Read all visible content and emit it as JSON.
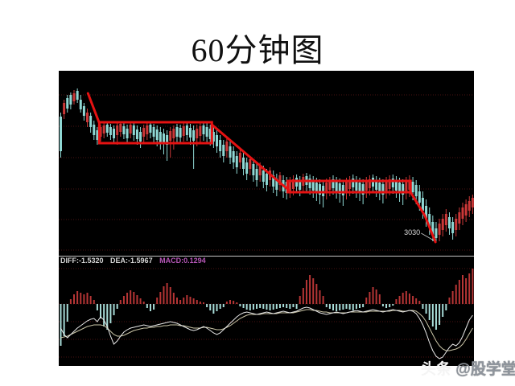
{
  "page": {
    "title": "60分钟图"
  },
  "watermark": {
    "brand": "头条",
    "handle": "@股学堂"
  },
  "chart": {
    "indicator_labels": {
      "diff": "DIFF:-1.5320",
      "dea": "DEA:-1.5967",
      "macd": "MACD:0.1294"
    },
    "colors": {
      "panel_bg": "#000000",
      "grid": "#4a1212",
      "divider": "#c4c4c4",
      "up": "#cc3838",
      "down": "#8fd8d4",
      "macd_up": "#b63535",
      "macd_down": "#a8dcd8",
      "diff_line": "#e8e8e8",
      "dea_line": "#c9c4a6",
      "annotation": "#e51212",
      "pointer": "#c8c8c8",
      "label_text": "#dddddd"
    }
  },
  "chart_data": {
    "type": "candlestick+macd",
    "title": "60分钟图",
    "legend": [
      "DIFF",
      "DEA",
      "MACD"
    ],
    "grid": true,
    "marked_low_price": 3030,
    "ylim": [
      3013,
      3243
    ],
    "candles": [
      [
        3186,
        3191,
        3135,
        3143
      ],
      [
        3189,
        3207,
        3183,
        3203
      ],
      [
        3209,
        3213,
        3191,
        3196
      ],
      [
        3213,
        3216,
        3195,
        3201
      ],
      [
        3205,
        3219,
        3201,
        3215
      ],
      [
        3218,
        3221,
        3203,
        3207
      ],
      [
        3207,
        3213,
        3191,
        3195
      ],
      [
        3199,
        3203,
        3181,
        3187
      ],
      [
        3179,
        3196,
        3173,
        3191
      ],
      [
        3187,
        3191,
        3166,
        3173
      ],
      [
        3176,
        3181,
        3157,
        3163
      ],
      [
        3169,
        3173,
        3151,
        3157
      ],
      [
        3161,
        3176,
        3155,
        3173
      ],
      [
        3165,
        3178,
        3159,
        3175
      ],
      [
        3176,
        3179,
        3161,
        3166
      ],
      [
        3173,
        3177,
        3157,
        3163
      ],
      [
        3171,
        3175,
        3153,
        3159
      ],
      [
        3163,
        3178,
        3151,
        3175
      ],
      [
        3167,
        3179,
        3161,
        3177
      ],
      [
        3174,
        3178,
        3158,
        3164
      ],
      [
        3171,
        3176,
        3153,
        3159
      ],
      [
        3165,
        3179,
        3159,
        3176
      ],
      [
        3175,
        3178,
        3156,
        3163
      ],
      [
        3170,
        3175,
        3151,
        3158
      ],
      [
        3167,
        3173,
        3147,
        3155
      ],
      [
        3161,
        3176,
        3154,
        3172
      ],
      [
        3164,
        3178,
        3157,
        3175
      ],
      [
        3176,
        3179,
        3159,
        3166
      ],
      [
        3173,
        3177,
        3153,
        3161
      ],
      [
        3170,
        3175,
        3149,
        3157
      ],
      [
        3167,
        3173,
        3145,
        3154
      ],
      [
        3165,
        3171,
        3139,
        3153
      ],
      [
        3163,
        3169,
        3131,
        3151
      ],
      [
        3156,
        3173,
        3135,
        3168
      ],
      [
        3159,
        3175,
        3145,
        3171
      ],
      [
        3173,
        3177,
        3153,
        3161
      ],
      [
        3172,
        3176,
        3152,
        3160
      ],
      [
        3162,
        3178,
        3155,
        3174
      ],
      [
        3175,
        3179,
        3156,
        3163
      ],
      [
        3172,
        3177,
        3151,
        3160
      ],
      [
        3169,
        3175,
        3121,
        3156
      ],
      [
        3159,
        3176,
        3149,
        3171
      ],
      [
        3162,
        3178,
        3153,
        3174
      ],
      [
        3175,
        3179,
        3156,
        3164
      ],
      [
        3173,
        3178,
        3153,
        3161
      ],
      [
        3171,
        3176,
        3150,
        3158
      ],
      [
        3167,
        3173,
        3147,
        3155
      ],
      [
        3163,
        3169,
        3141,
        3149
      ],
      [
        3157,
        3163,
        3135,
        3143
      ],
      [
        3151,
        3157,
        3129,
        3137
      ],
      [
        3143,
        3159,
        3135,
        3155
      ],
      [
        3149,
        3155,
        3127,
        3135
      ],
      [
        3143,
        3149,
        3121,
        3129
      ],
      [
        3137,
        3143,
        3115,
        3123
      ],
      [
        3129,
        3145,
        3121,
        3141
      ],
      [
        3135,
        3141,
        3113,
        3121
      ],
      [
        3129,
        3135,
        3107,
        3115
      ],
      [
        3121,
        3137,
        3113,
        3133
      ],
      [
        3127,
        3133,
        3105,
        3113
      ],
      [
        3121,
        3127,
        3099,
        3107
      ],
      [
        3113,
        3129,
        3105,
        3125
      ],
      [
        3119,
        3125,
        3097,
        3105
      ],
      [
        3115,
        3121,
        3093,
        3101
      ],
      [
        3107,
        3123,
        3099,
        3119
      ],
      [
        3113,
        3119,
        3091,
        3099
      ],
      [
        3109,
        3115,
        3087,
        3095
      ],
      [
        3101,
        3117,
        3093,
        3113
      ],
      [
        3107,
        3113,
        3085,
        3093
      ],
      [
        3105,
        3111,
        3083,
        3091
      ],
      [
        3093,
        3111,
        3085,
        3106
      ],
      [
        3096,
        3113,
        3088,
        3108
      ],
      [
        3110,
        3114,
        3091,
        3099
      ],
      [
        3107,
        3112,
        3087,
        3095
      ],
      [
        3100,
        3115,
        3092,
        3111
      ],
      [
        3112,
        3116,
        3093,
        3101
      ],
      [
        3109,
        3114,
        3089,
        3097
      ],
      [
        3106,
        3112,
        3085,
        3094
      ],
      [
        3104,
        3110,
        3081,
        3091
      ],
      [
        3102,
        3108,
        3077,
        3089
      ],
      [
        3100,
        3106,
        3073,
        3087
      ],
      [
        3092,
        3109,
        3083,
        3104
      ],
      [
        3095,
        3111,
        3087,
        3106
      ],
      [
        3108,
        3113,
        3089,
        3097
      ],
      [
        3105,
        3111,
        3084,
        3093
      ],
      [
        3103,
        3109,
        3079,
        3090
      ],
      [
        3101,
        3107,
        3075,
        3088
      ],
      [
        3093,
        3110,
        3083,
        3105
      ],
      [
        3096,
        3112,
        3087,
        3107
      ],
      [
        3109,
        3114,
        3090,
        3098
      ],
      [
        3106,
        3112,
        3085,
        3094
      ],
      [
        3104,
        3110,
        3081,
        3091
      ],
      [
        3102,
        3108,
        3077,
        3089
      ],
      [
        3094,
        3111,
        3085,
        3106
      ],
      [
        3097,
        3113,
        3088,
        3108
      ],
      [
        3110,
        3114,
        3091,
        3099
      ],
      [
        3107,
        3112,
        3086,
        3095
      ],
      [
        3104,
        3110,
        3082,
        3092
      ],
      [
        3102,
        3108,
        3078,
        3089
      ],
      [
        3093,
        3111,
        3084,
        3105
      ],
      [
        3096,
        3113,
        3088,
        3108
      ],
      [
        3109,
        3114,
        3090,
        3098
      ],
      [
        3106,
        3112,
        3085,
        3094
      ],
      [
        3104,
        3110,
        3080,
        3091
      ],
      [
        3102,
        3108,
        3076,
        3089
      ],
      [
        3093,
        3111,
        3083,
        3105
      ],
      [
        3095,
        3113,
        3086,
        3107
      ],
      [
        3105,
        3111,
        3082,
        3092
      ],
      [
        3101,
        3107,
        3077,
        3087
      ],
      [
        3093,
        3101,
        3069,
        3079
      ],
      [
        3085,
        3093,
        3059,
        3069
      ],
      [
        3075,
        3083,
        3049,
        3059
      ],
      [
        3065,
        3073,
        3039,
        3049
      ],
      [
        3055,
        3063,
        3031,
        3039
      ],
      [
        3047,
        3055,
        3030,
        3035
      ],
      [
        3039,
        3059,
        3031,
        3053
      ],
      [
        3045,
        3065,
        3037,
        3059
      ],
      [
        3051,
        3071,
        3043,
        3065
      ],
      [
        3061,
        3067,
        3039,
        3047
      ],
      [
        3055,
        3061,
        3033,
        3041
      ],
      [
        3045,
        3065,
        3037,
        3059
      ],
      [
        3053,
        3073,
        3045,
        3067
      ],
      [
        3059,
        3079,
        3051,
        3073
      ],
      [
        3063,
        3083,
        3055,
        3077
      ],
      [
        3069,
        3087,
        3061,
        3081
      ],
      [
        3073,
        3089,
        3065,
        3085
      ]
    ],
    "macd": {
      "unit": "relative",
      "histogram": [
        -52,
        -40,
        -22,
        6,
        12,
        16,
        14,
        12,
        14,
        10,
        5,
        -8,
        -18,
        -28,
        -32,
        -24,
        -14,
        -6,
        5,
        10,
        14,
        17,
        15,
        11,
        7,
        3,
        -5,
        -9,
        -7,
        8,
        15,
        22,
        26,
        21,
        14,
        8,
        5,
        8,
        11,
        9,
        7,
        5,
        3,
        2,
        -4,
        -8,
        -12,
        -9,
        -6,
        -4,
        3,
        5,
        4,
        2,
        -3,
        -5,
        -7,
        -8,
        -7,
        -6,
        -5,
        -6,
        -7,
        -8,
        -7,
        -6,
        -5,
        -4,
        -5,
        -6,
        -4,
        -6,
        10,
        20,
        30,
        36,
        32,
        25,
        17,
        10,
        -4,
        -6,
        -8,
        -9,
        -8,
        -7,
        -6,
        -7,
        -8,
        -6,
        -5,
        -4,
        8,
        15,
        21,
        18,
        12,
        -3,
        -5,
        -4,
        -2,
        6,
        10,
        14,
        16,
        13,
        10,
        7,
        4,
        -6,
        -12,
        -20,
        -28,
        -32,
        -26,
        -16,
        -8,
        8,
        16,
        24,
        30,
        36,
        32,
        38,
        44
      ],
      "diff": [
        -30,
        -38,
        -42,
        -38,
        -34,
        -30,
        -27,
        -24,
        -21,
        -19,
        -18,
        -22,
        -16,
        -20,
        -28,
        -40,
        -50,
        -46,
        -40,
        -35,
        -32,
        -30,
        -29,
        -28,
        -27,
        -26,
        -27,
        -28,
        -27,
        -26,
        -25,
        -24,
        -23,
        -22,
        -23,
        -24,
        -26,
        -28,
        -30,
        -32,
        -33,
        -32,
        -30,
        -28,
        -30,
        -33,
        -36,
        -38,
        -36,
        -32,
        -28,
        -24,
        -20,
        -16,
        -13,
        -11,
        -10,
        -11,
        -12,
        -13,
        -12,
        -11,
        -10,
        -11,
        -12,
        -11,
        -10,
        -9,
        -10,
        -11,
        -10,
        -9,
        -7,
        -5,
        -4,
        -5,
        -7,
        -9,
        -11,
        -12,
        -13,
        -12,
        -11,
        -10,
        -11,
        -12,
        -11,
        -10,
        -9,
        -8,
        -9,
        -10,
        -9,
        -8,
        -7,
        -8,
        -9,
        -10,
        -9,
        -8,
        -7,
        -8,
        -9,
        -10,
        -9,
        -8,
        -9,
        -12,
        -18,
        -26,
        -36,
        -48,
        -58,
        -65,
        -68,
        -66,
        -60,
        -54,
        -50,
        -52,
        -48,
        -40,
        -30,
        -20,
        -14
      ],
      "dea": [
        -42,
        -41,
        -40,
        -38,
        -36,
        -34,
        -32,
        -30,
        -28,
        -27,
        -26,
        -26,
        -26,
        -27,
        -30,
        -34,
        -38,
        -40,
        -40,
        -39,
        -37,
        -35,
        -33,
        -32,
        -31,
        -30,
        -30,
        -29,
        -29,
        -28,
        -28,
        -27,
        -27,
        -26,
        -26,
        -26,
        -27,
        -27,
        -28,
        -29,
        -30,
        -30,
        -30,
        -29,
        -29,
        -30,
        -31,
        -32,
        -32,
        -31,
        -29,
        -27,
        -24,
        -21,
        -18,
        -16,
        -14,
        -13,
        -13,
        -13,
        -13,
        -12,
        -12,
        -12,
        -12,
        -12,
        -11,
        -11,
        -11,
        -11,
        -11,
        -10,
        -9,
        -8,
        -7,
        -7,
        -8,
        -8,
        -9,
        -10,
        -10,
        -11,
        -11,
        -11,
        -11,
        -11,
        -11,
        -10,
        -10,
        -10,
        -10,
        -10,
        -10,
        -9,
        -9,
        -9,
        -9,
        -9,
        -9,
        -9,
        -8,
        -8,
        -8,
        -9,
        -9,
        -8,
        -8,
        -9,
        -12,
        -16,
        -22,
        -30,
        -38,
        -46,
        -52,
        -56,
        -58,
        -58,
        -57,
        -56,
        -54,
        -50,
        -44,
        -37,
        -30
      ]
    },
    "annotations": {
      "boxes": [
        {
          "bar_from": 11.6,
          "bar_to": 45.5,
          "price_top": 3179,
          "price_bottom": 3153
        },
        {
          "bar_from": 68.3,
          "bar_to": 105.3,
          "price_top": 3106,
          "price_bottom": 3092
        }
      ],
      "trendlines": [
        [
          [
            8.2,
            3215
          ],
          [
            11.6,
            3178
          ]
        ],
        [
          [
            45.5,
            3176
          ],
          [
            68.5,
            3095
          ]
        ],
        [
          [
            105.3,
            3092
          ],
          [
            109.6,
            3063
          ],
          [
            112.8,
            3030
          ]
        ]
      ],
      "low_pointer": [
        [
          108.5,
          3041
        ],
        [
          112.3,
          3032
        ]
      ],
      "low_label": {
        "bar": 108.2,
        "price": 3039,
        "text": "3030"
      }
    }
  }
}
